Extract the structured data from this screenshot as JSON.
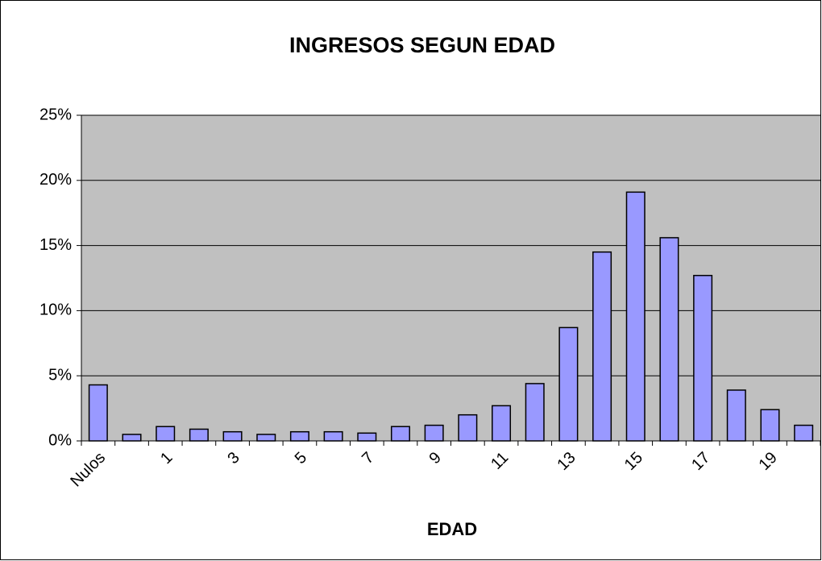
{
  "chart_data": {
    "type": "bar",
    "title": "INGRESOS SEGUN EDAD",
    "x_label": "EDAD",
    "categories": [
      "Nulos",
      null,
      "1",
      null,
      "3",
      null,
      "5",
      null,
      "7",
      null,
      "9",
      null,
      "11",
      null,
      "13",
      null,
      "15",
      null,
      "17",
      null,
      "19",
      null
    ],
    "values": [
      4.3,
      0.5,
      1.1,
      0.9,
      0.7,
      0.5,
      0.7,
      0.7,
      0.6,
      1.1,
      1.2,
      2.0,
      2.7,
      4.4,
      8.7,
      14.5,
      19.1,
      15.6,
      12.7,
      3.9,
      2.4,
      1.2
    ],
    "color": "#9999ff",
    "ylim": [
      0,
      25
    ],
    "yticks": [
      {
        "value": 0,
        "label": "0%"
      },
      {
        "value": 5,
        "label": "5%"
      },
      {
        "value": 10,
        "label": "10%"
      },
      {
        "value": 15,
        "label": "15%"
      },
      {
        "value": 20,
        "label": "20%"
      },
      {
        "value": 25,
        "label": "25%"
      }
    ],
    "grid": true
  }
}
